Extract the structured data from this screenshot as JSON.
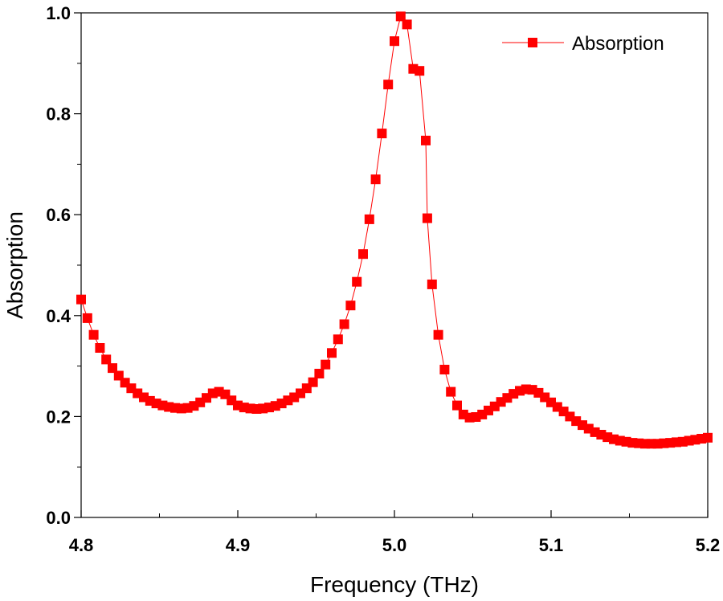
{
  "colors": {
    "series": "#ff0000",
    "axis": "#000000",
    "background": "#ffffff"
  },
  "chart_data": {
    "type": "line",
    "title": "",
    "xlabel": "Frequency (THz)",
    "ylabel": "Absorption",
    "xlim": [
      4.8,
      5.2
    ],
    "ylim": [
      0.0,
      1.0
    ],
    "grid": false,
    "legend_position": "top-right",
    "xticks": [
      4.8,
      4.9,
      5.0,
      5.1,
      5.2
    ],
    "xtick_labels": [
      "4.8",
      "4.9",
      "5.0",
      "5.1",
      "5.2"
    ],
    "yticks": [
      0.0,
      0.2,
      0.4,
      0.6,
      0.8,
      1.0
    ],
    "ytick_labels": [
      "0.0",
      "0.2",
      "0.4",
      "0.6",
      "0.8",
      "1.0"
    ],
    "series": [
      {
        "name": "Absorption",
        "marker": "square",
        "x": [
          4.8,
          4.804,
          4.808,
          4.812,
          4.816,
          4.82,
          4.824,
          4.828,
          4.832,
          4.836,
          4.84,
          4.844,
          4.848,
          4.852,
          4.856,
          4.86,
          4.864,
          4.868,
          4.872,
          4.876,
          4.88,
          4.884,
          4.888,
          4.892,
          4.896,
          4.9,
          4.904,
          4.908,
          4.912,
          4.916,
          4.92,
          4.924,
          4.928,
          4.932,
          4.936,
          4.94,
          4.944,
          4.948,
          4.952,
          4.956,
          4.96,
          4.964,
          4.968,
          4.972,
          4.976,
          4.98,
          4.984,
          4.988,
          4.992,
          4.996,
          5.0,
          5.004,
          5.008,
          5.012,
          5.016,
          5.02,
          5.021,
          5.024,
          5.028,
          5.032,
          5.036,
          5.04,
          5.044,
          5.048,
          5.052,
          5.056,
          5.06,
          5.064,
          5.068,
          5.072,
          5.076,
          5.08,
          5.084,
          5.088,
          5.092,
          5.096,
          5.1,
          5.104,
          5.108,
          5.112,
          5.116,
          5.12,
          5.124,
          5.128,
          5.132,
          5.136,
          5.14,
          5.144,
          5.148,
          5.152,
          5.156,
          5.16,
          5.164,
          5.168,
          5.172,
          5.176,
          5.18,
          5.184,
          5.188,
          5.192,
          5.196,
          5.2
        ],
        "y": [
          0.432,
          0.395,
          0.362,
          0.336,
          0.313,
          0.296,
          0.281,
          0.267,
          0.256,
          0.246,
          0.238,
          0.231,
          0.226,
          0.222,
          0.219,
          0.217,
          0.216,
          0.217,
          0.221,
          0.228,
          0.237,
          0.246,
          0.249,
          0.244,
          0.232,
          0.222,
          0.218,
          0.216,
          0.215,
          0.216,
          0.218,
          0.221,
          0.226,
          0.232,
          0.238,
          0.246,
          0.256,
          0.268,
          0.285,
          0.303,
          0.326,
          0.353,
          0.383,
          0.42,
          0.467,
          0.522,
          0.591,
          0.67,
          0.761,
          0.858,
          0.944,
          0.993,
          0.977,
          0.889,
          0.885,
          0.747,
          0.593,
          0.462,
          0.362,
          0.293,
          0.249,
          0.222,
          0.204,
          0.198,
          0.199,
          0.204,
          0.212,
          0.22,
          0.229,
          0.237,
          0.245,
          0.251,
          0.254,
          0.253,
          0.247,
          0.238,
          0.228,
          0.219,
          0.21,
          0.2,
          0.191,
          0.183,
          0.176,
          0.169,
          0.164,
          0.159,
          0.155,
          0.152,
          0.15,
          0.148,
          0.147,
          0.146,
          0.146,
          0.146,
          0.147,
          0.148,
          0.149,
          0.15,
          0.152,
          0.154,
          0.156,
          0.158
        ]
      }
    ]
  }
}
